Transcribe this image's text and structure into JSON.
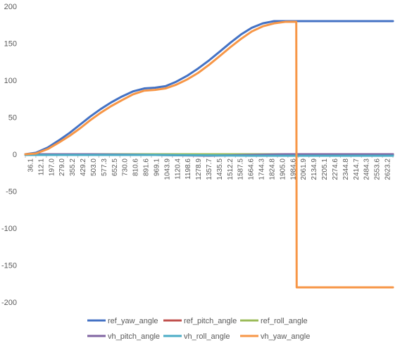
{
  "chart_data": {
    "type": "line",
    "title": "",
    "xlabel": "",
    "ylabel": "",
    "ylim": [
      -200,
      200
    ],
    "yticks": [
      200,
      150,
      100,
      50,
      0,
      -50,
      -100,
      -150,
      -200
    ],
    "x_tick_labels": [
      "36.1",
      "112.1",
      "197.0",
      "279.0",
      "355.2",
      "429.2",
      "503.0",
      "577.3",
      "652.5",
      "730.0",
      "810.6",
      "891.6",
      "969.1",
      "1043.9",
      "1120.4",
      "1198.6",
      "1278.9",
      "1357.7",
      "1435.5",
      "1512.2",
      "1587.5",
      "1664.6",
      "1744.3",
      "1824.8",
      "1905.0",
      "1984.6",
      "2061.9",
      "2134.9",
      "2205.1",
      "2274.6",
      "2344.8",
      "2414.7",
      "2484.3",
      "2553.6",
      "2623.2"
    ],
    "grid": false,
    "legend_position": "bottom",
    "colors": {
      "ref_yaw_angle": "#4472C4",
      "ref_pitch_angle": "#C0504D",
      "ref_roll_angle": "#9BBB59",
      "vh_pitch_angle": "#8064A2",
      "vh_roll_angle": "#4BACC6",
      "vh_yaw_angle": "#F79646"
    },
    "series": [
      {
        "name": "ref_yaw_angle",
        "points": [
          [
            36.1,
            0
          ],
          [
            112.1,
            2
          ],
          [
            197.0,
            9
          ],
          [
            279.0,
            19
          ],
          [
            355.2,
            29
          ],
          [
            429.2,
            40
          ],
          [
            503.0,
            51
          ],
          [
            577.3,
            61
          ],
          [
            652.5,
            70
          ],
          [
            730.0,
            78
          ],
          [
            810.6,
            85
          ],
          [
            891.6,
            89
          ],
          [
            969.1,
            90
          ],
          [
            1043.9,
            92
          ],
          [
            1120.4,
            98
          ],
          [
            1198.6,
            106
          ],
          [
            1278.9,
            116
          ],
          [
            1357.7,
            127
          ],
          [
            1435.5,
            139
          ],
          [
            1512.2,
            151
          ],
          [
            1587.5,
            162
          ],
          [
            1664.6,
            171
          ],
          [
            1744.3,
            177
          ],
          [
            1824.8,
            180
          ],
          [
            1905.0,
            180
          ],
          [
            1984.6,
            180
          ],
          [
            2061.9,
            180
          ],
          [
            2134.9,
            180
          ],
          [
            2205.1,
            180
          ],
          [
            2274.6,
            180
          ],
          [
            2344.8,
            180
          ],
          [
            2414.7,
            180
          ],
          [
            2484.3,
            180
          ],
          [
            2553.6,
            180
          ],
          [
            2623.2,
            180
          ],
          [
            2680,
            180
          ]
        ]
      },
      {
        "name": "ref_pitch_angle",
        "points": [
          [
            36.1,
            0
          ],
          [
            2680,
            0
          ]
        ]
      },
      {
        "name": "ref_roll_angle",
        "points": [
          [
            36.1,
            0
          ],
          [
            2680,
            0
          ]
        ]
      },
      {
        "name": "vh_pitch_angle",
        "points": [
          [
            36.1,
            0
          ],
          [
            503.0,
            0
          ],
          [
            969.1,
            -1
          ],
          [
            1357.7,
            -2
          ],
          [
            1664.6,
            -1
          ],
          [
            1905.0,
            0
          ],
          [
            2680,
            0
          ]
        ]
      },
      {
        "name": "vh_roll_angle",
        "points": [
          [
            36.1,
            -1
          ],
          [
            969.1,
            -1
          ],
          [
            1664.6,
            -2
          ],
          [
            2061.9,
            -2
          ],
          [
            2680,
            -2
          ]
        ]
      },
      {
        "name": "vh_yaw_angle",
        "points": [
          [
            36.1,
            0
          ],
          [
            112.1,
            1
          ],
          [
            197.0,
            7
          ],
          [
            279.0,
            16
          ],
          [
            355.2,
            25
          ],
          [
            429.2,
            35
          ],
          [
            503.0,
            46
          ],
          [
            577.3,
            56
          ],
          [
            652.5,
            65
          ],
          [
            730.0,
            73
          ],
          [
            810.6,
            81
          ],
          [
            891.6,
            86
          ],
          [
            969.1,
            87
          ],
          [
            1043.9,
            89
          ],
          [
            1120.4,
            94
          ],
          [
            1198.6,
            101
          ],
          [
            1278.9,
            110
          ],
          [
            1357.7,
            121
          ],
          [
            1435.5,
            133
          ],
          [
            1512.2,
            145
          ],
          [
            1587.5,
            156
          ],
          [
            1664.6,
            166
          ],
          [
            1744.3,
            173
          ],
          [
            1824.8,
            177
          ],
          [
            1905.0,
            179
          ],
          [
            1984.6,
            179
          ],
          [
            1987.5,
            -180
          ],
          [
            2061.9,
            -180
          ],
          [
            2134.9,
            -180
          ],
          [
            2205.1,
            -180
          ],
          [
            2274.6,
            -180
          ],
          [
            2344.8,
            -180
          ],
          [
            2414.7,
            -180
          ],
          [
            2484.3,
            -180
          ],
          [
            2553.6,
            -180
          ],
          [
            2623.2,
            -180
          ],
          [
            2680,
            -180
          ]
        ]
      }
    ]
  }
}
